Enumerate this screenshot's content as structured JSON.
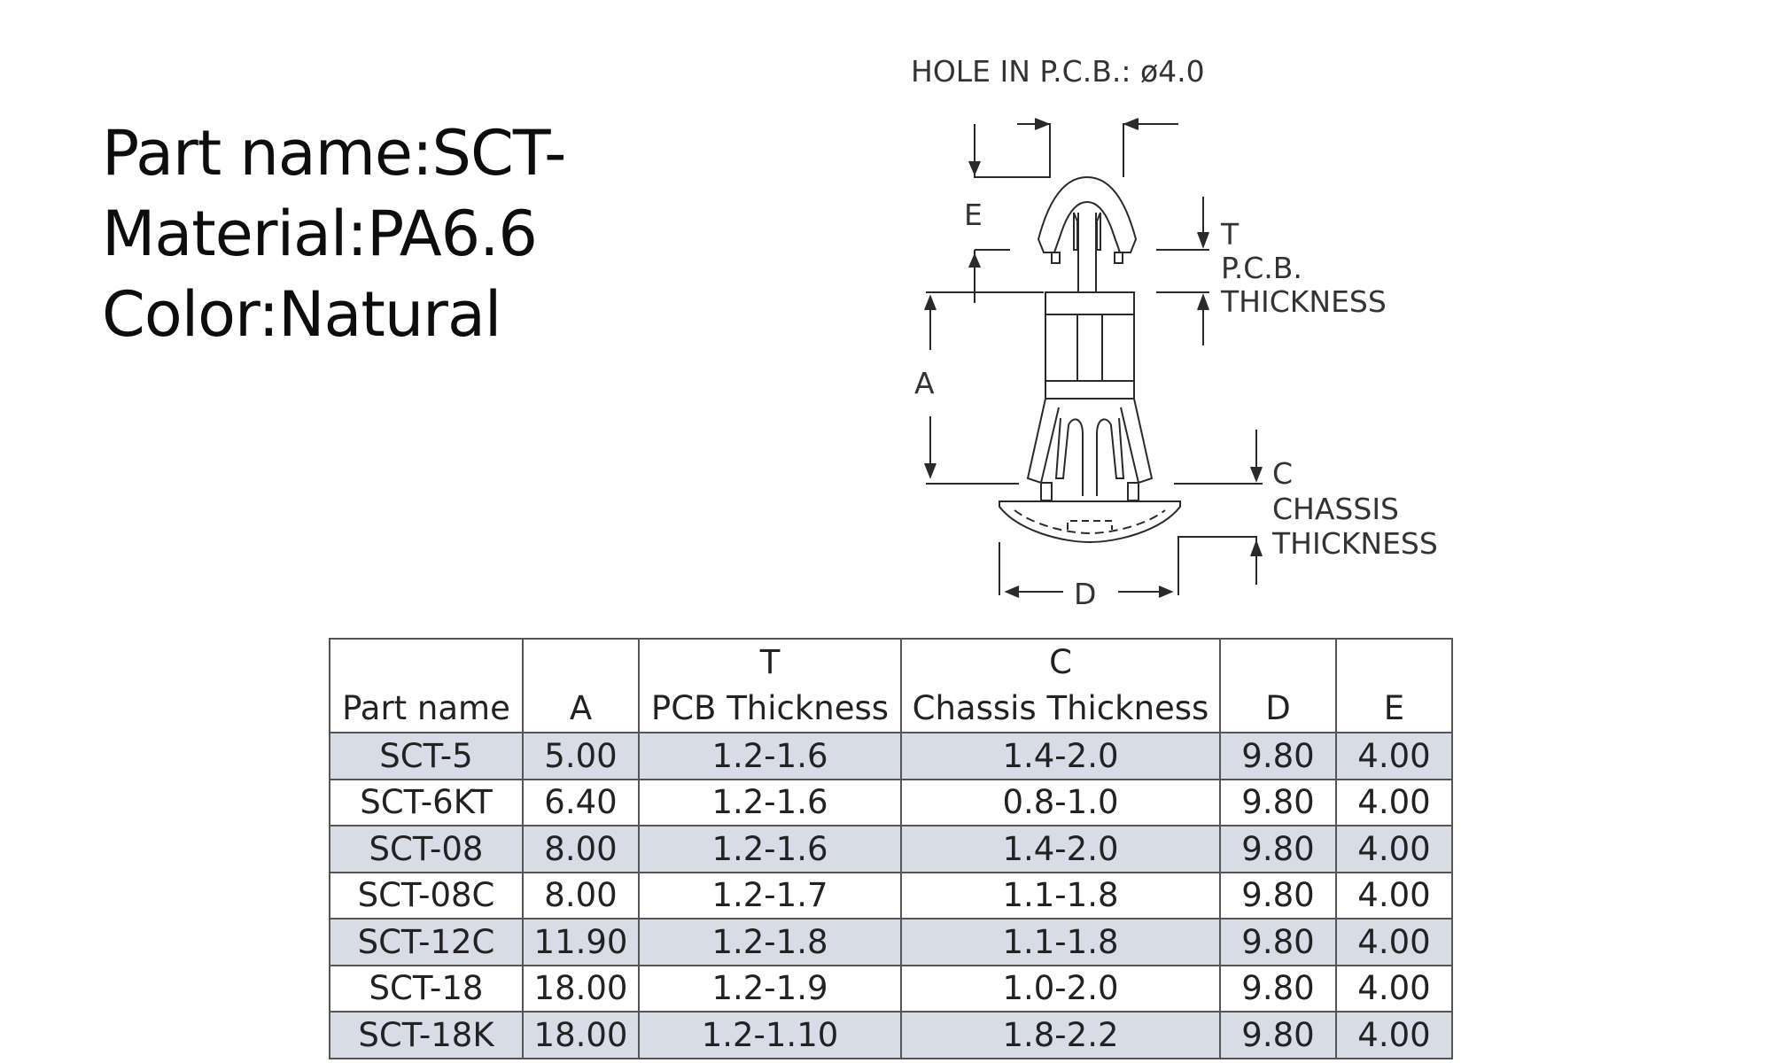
{
  "part_info": {
    "part_name": "Part name:SCT-",
    "material": "Material:PA6.6",
    "color": "Color:Natural"
  },
  "drawing": {
    "hole_label": "HOLE  IN  P.C.B.:  ø4.0",
    "label_e": "E",
    "label_a": "A",
    "label_d": "D",
    "label_t": "T",
    "label_pcb": "P.C.B.",
    "label_pcb_thickness": "THICKNESS",
    "label_c": "C",
    "label_chassis": "CHASSIS",
    "label_chassis_thickness": "THICKNESS"
  },
  "table": {
    "headers": {
      "part_name": "Part name",
      "a": "A",
      "t_top": "T",
      "t_bottom": "PCB Thickness",
      "c_top": "C",
      "c_bottom": "Chassis Thickness",
      "d": "D",
      "e": "E"
    },
    "rows": [
      [
        "SCT-5",
        "5.00",
        "1.2-1.6",
        "1.4-2.0",
        "9.80",
        "4.00"
      ],
      [
        "SCT-6KT",
        "6.40",
        "1.2-1.6",
        "0.8-1.0",
        "9.80",
        "4.00"
      ],
      [
        "SCT-08",
        "8.00",
        "1.2-1.6",
        "1.4-2.0",
        "9.80",
        "4.00"
      ],
      [
        "SCT-08C",
        "8.00",
        "1.2-1.7",
        "1.1-1.8",
        "9.80",
        "4.00"
      ],
      [
        "SCT-12C",
        "11.90",
        "1.2-1.8",
        "1.1-1.8",
        "9.80",
        "4.00"
      ],
      [
        "SCT-18",
        "18.00",
        "1.2-1.9",
        "1.0-2.0",
        "9.80",
        "4.00"
      ],
      [
        "SCT-18K",
        "18.00",
        "1.2-1.10",
        "1.8-2.2",
        "9.80",
        "4.00"
      ]
    ],
    "shade_color": "#d7dce6"
  }
}
